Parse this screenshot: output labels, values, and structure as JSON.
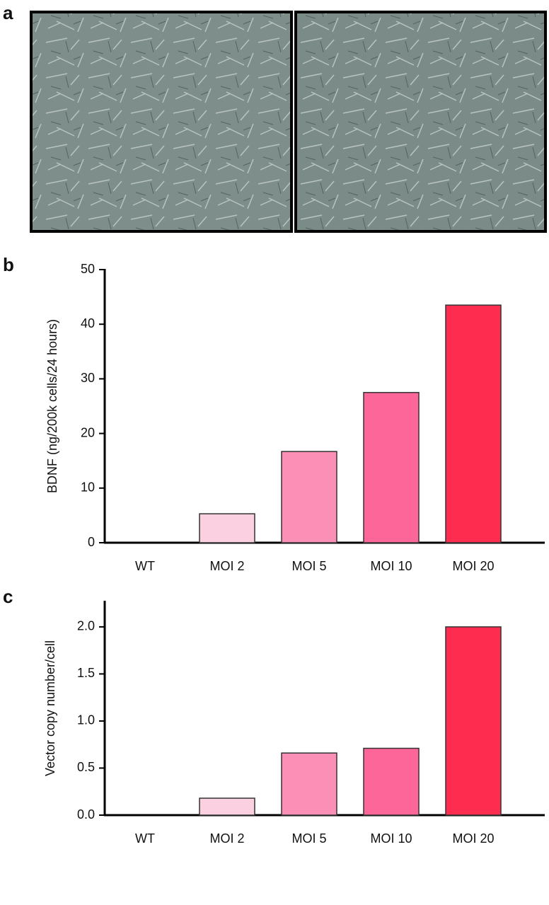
{
  "panel_a": {
    "label": "a"
  },
  "chart_data": [
    {
      "type": "bar",
      "label": "b",
      "ylabel": "BDNF (ng/200k cells/24 hours)",
      "categories": [
        "WT",
        "MOI 2",
        "MOI 5",
        "MOI 10",
        "MOI 20"
      ],
      "values": [
        0,
        5.3,
        16.7,
        27.5,
        43.5
      ],
      "colors": [
        "#fbd0e0",
        "#fbd0e0",
        "#fc8fb5",
        "#fd6698",
        "#fe2c4e"
      ],
      "ylim": [
        0,
        50
      ],
      "yticks": [
        0,
        10,
        20,
        30,
        40,
        50
      ],
      "grid": false
    },
    {
      "type": "bar",
      "label": "c",
      "ylabel": "Vector copy number/cell",
      "categories": [
        "WT",
        "MOI 2",
        "MOI 5",
        "MOI 10",
        "MOI 20"
      ],
      "values": [
        0,
        0.18,
        0.66,
        0.71,
        2.0
      ],
      "colors": [
        "#fbd0e0",
        "#fbd0e0",
        "#fc8fb5",
        "#fd6698",
        "#fe2c4e"
      ],
      "ylim": [
        0,
        2.27
      ],
      "yticks": [
        {
          "value": 0,
          "label": "0.0"
        },
        {
          "value": 0.5,
          "label": "0.5"
        },
        {
          "value": 1,
          "label": "1.0"
        },
        {
          "value": 1.5,
          "label": "1.5"
        },
        {
          "value": 2,
          "label": "2.0"
        }
      ],
      "grid": false
    }
  ]
}
